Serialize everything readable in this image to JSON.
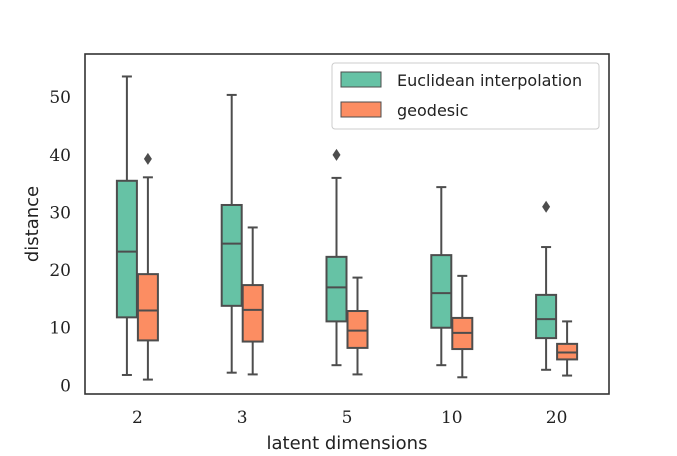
{
  "chart_data": {
    "type": "box",
    "title": "",
    "xlabel": "latent dimensions",
    "ylabel": "distance",
    "categories": [
      "2",
      "3",
      "5",
      "10",
      "20"
    ],
    "ylim": [
      -1.5,
      57.5
    ],
    "yticks": [
      0,
      10,
      20,
      30,
      40,
      50
    ],
    "grid": false,
    "legend_position": "top-right",
    "series": [
      {
        "name": "Euclidean interpolation",
        "color": "#66c2a5",
        "boxes": [
          {
            "whisker_low": 1.8,
            "q1": 11.8,
            "median": 23.2,
            "q3": 35.5,
            "whisker_high": 53.6,
            "outliers": []
          },
          {
            "whisker_low": 2.2,
            "q1": 13.8,
            "median": 24.6,
            "q3": 31.3,
            "whisker_high": 50.4,
            "outliers": []
          },
          {
            "whisker_low": 3.5,
            "q1": 11.1,
            "median": 17.0,
            "q3": 22.3,
            "whisker_high": 36.0,
            "outliers": [
              40.0
            ]
          },
          {
            "whisker_low": 3.5,
            "q1": 10.0,
            "median": 16.0,
            "q3": 22.6,
            "whisker_high": 34.4,
            "outliers": []
          },
          {
            "whisker_low": 2.7,
            "q1": 8.2,
            "median": 11.5,
            "q3": 15.7,
            "whisker_high": 24.0,
            "outliers": [
              31.0
            ]
          }
        ]
      },
      {
        "name": "geodesic",
        "color": "#fc8d62",
        "boxes": [
          {
            "whisker_low": 1.0,
            "q1": 7.8,
            "median": 13.0,
            "q3": 19.3,
            "whisker_high": 36.1,
            "outliers": [
              39.3
            ]
          },
          {
            "whisker_low": 1.9,
            "q1": 7.6,
            "median": 13.1,
            "q3": 17.4,
            "whisker_high": 27.4,
            "outliers": []
          },
          {
            "whisker_low": 1.9,
            "q1": 6.5,
            "median": 9.5,
            "q3": 12.9,
            "whisker_high": 18.7,
            "outliers": []
          },
          {
            "whisker_low": 1.4,
            "q1": 6.3,
            "median": 9.1,
            "q3": 11.7,
            "whisker_high": 19.0,
            "outliers": []
          },
          {
            "whisker_low": 1.7,
            "q1": 4.5,
            "median": 5.7,
            "q3": 7.2,
            "whisker_high": 11.1,
            "outliers": []
          }
        ]
      }
    ]
  }
}
